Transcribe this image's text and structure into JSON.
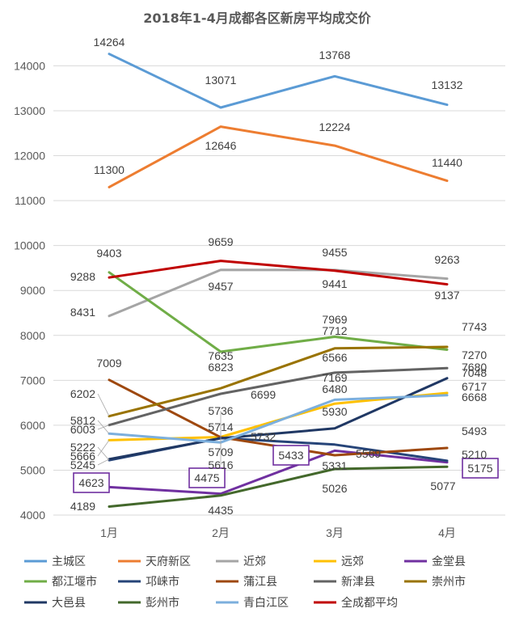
{
  "chart_data": {
    "type": "line",
    "title": "2018年1-4月成都各区新房平均成交价",
    "xlabel": "",
    "ylabel": "",
    "categories": [
      "1月",
      "2月",
      "3月",
      "4月"
    ],
    "ylim": [
      4000,
      14500
    ],
    "yticks": [
      4000,
      5000,
      6000,
      7000,
      8000,
      9000,
      10000,
      11000,
      12000,
      13000,
      14000
    ],
    "grid": true,
    "legend_position": "bottom",
    "series": [
      {
        "name": "主城区",
        "color": "#5b9bd5",
        "values": [
          14264,
          13071,
          13768,
          13132
        ]
      },
      {
        "name": "天府新区",
        "color": "#ed7d31",
        "values": [
          11300,
          12646,
          12224,
          11440
        ]
      },
      {
        "name": "近郊",
        "color": "#a5a5a5",
        "values": [
          8431,
          9457,
          9455,
          9263
        ]
      },
      {
        "name": "远郊",
        "color": "#ffc000",
        "values": [
          5666,
          5736,
          6480,
          6717
        ]
      },
      {
        "name": "金堂县",
        "color": "#7030a0",
        "values": [
          4623,
          4475,
          5433,
          5175
        ]
      },
      {
        "name": "都江堰市",
        "color": "#70ad47",
        "values": [
          9403,
          7635,
          7969,
          7680
        ]
      },
      {
        "name": "邛崃市",
        "color": "#264478",
        "values": [
          5222,
          5714,
          5569,
          5210
        ]
      },
      {
        "name": "蒲江县",
        "color": "#9e480e",
        "values": [
          7009,
          5732,
          5331,
          5493
        ]
      },
      {
        "name": "新津县",
        "color": "#636363",
        "values": [
          6003,
          6699,
          7169,
          7270
        ]
      },
      {
        "name": "崇州市",
        "color": "#997300",
        "values": [
          6202,
          6823,
          7712,
          7743
        ]
      },
      {
        "name": "大邑县",
        "color": "#203864",
        "values": [
          5245,
          5709,
          5930,
          7048
        ]
      },
      {
        "name": "彭州市",
        "color": "#43682b",
        "values": [
          4189,
          4435,
          5026,
          5077
        ]
      },
      {
        "name": "青白江区",
        "color": "#7cafdd",
        "values": [
          5812,
          5616,
          6566,
          6668
        ]
      },
      {
        "name": "全成都平均",
        "color": "#c00000",
        "values": [
          9288,
          9659,
          9441,
          9137
        ]
      }
    ]
  }
}
